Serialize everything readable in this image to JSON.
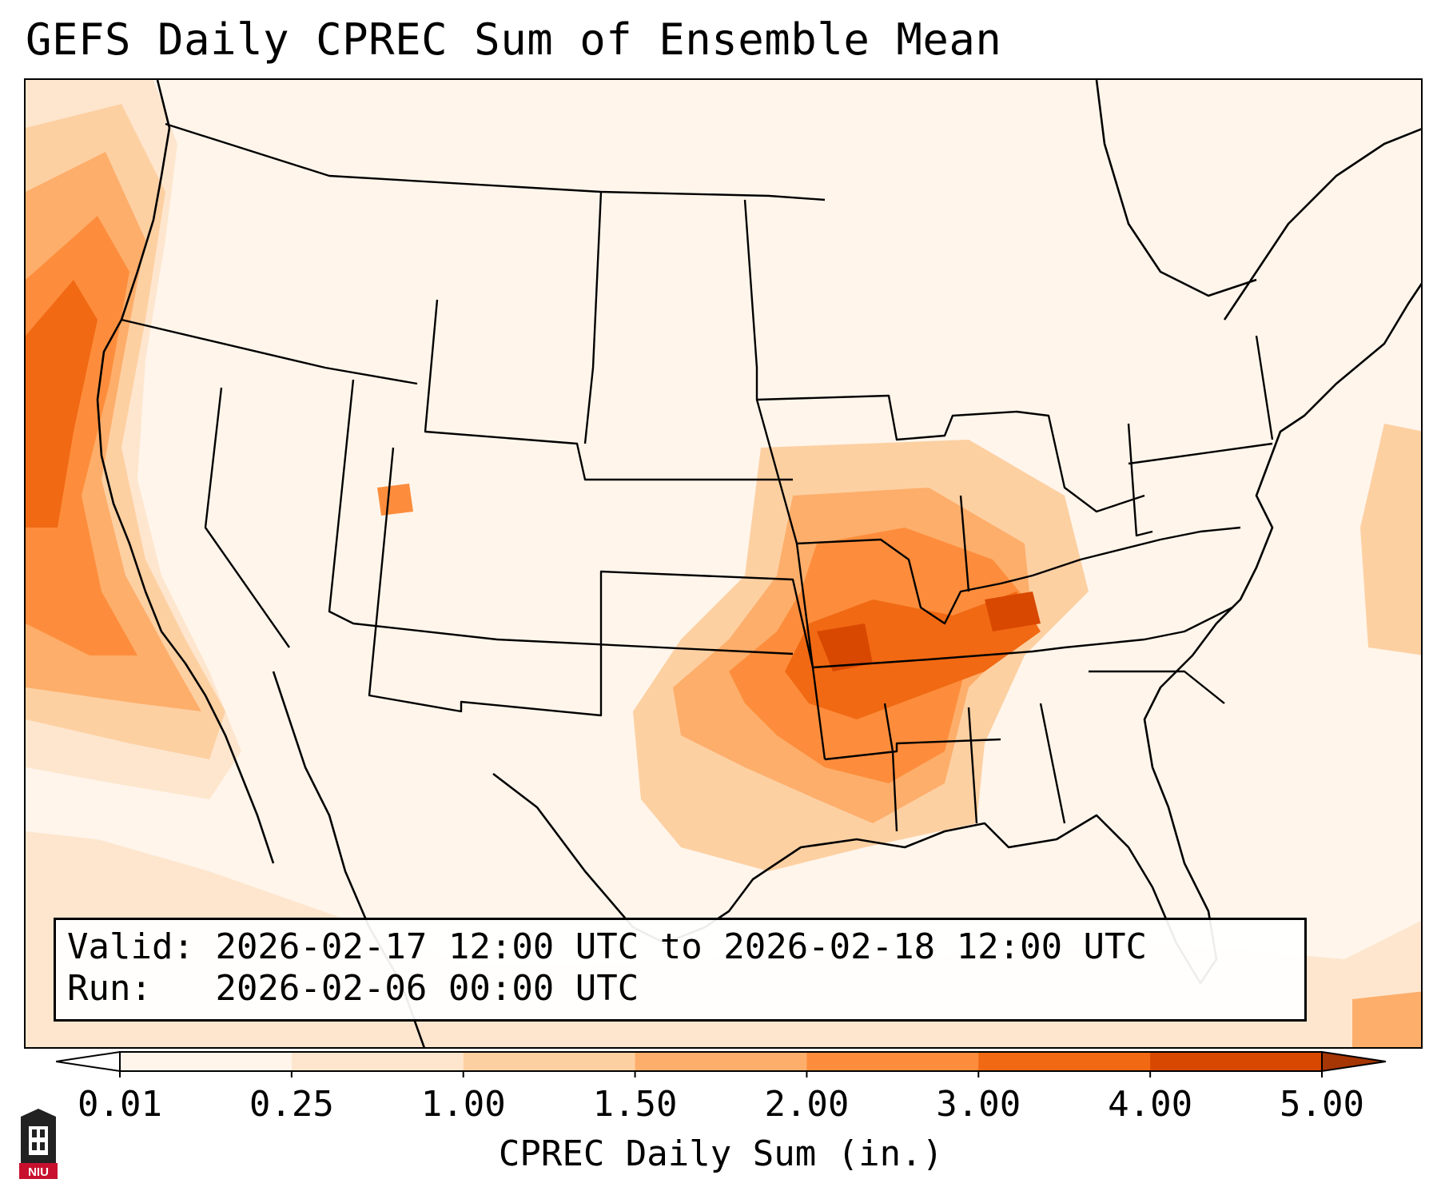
{
  "title": "GEFS Daily CPREC Sum of Ensemble Mean",
  "info": {
    "valid_label": "Valid:",
    "valid_value": "2026-02-17 12:00 UTC to 2026-02-18 12:00 UTC",
    "run_label": "Run:",
    "run_value": "2026-02-06 00:00 UTC"
  },
  "colorbar": {
    "title": "CPREC Daily Sum (in.)",
    "ticks": [
      "0.01",
      "0.25",
      "1.00",
      "1.50",
      "2.00",
      "3.00",
      "4.00",
      "5.00"
    ],
    "colors": [
      "#fff5eb",
      "#fee6ce",
      "#fdd0a2",
      "#fdae6b",
      "#fd8d3c",
      "#f16913",
      "#d94801"
    ],
    "under_color": "#ffffff",
    "over_color": "#a63603"
  },
  "logo": {
    "text": "NIU",
    "color": "#c8102e"
  },
  "map": {
    "region": "Continental United States",
    "features": [
      "coastlines",
      "state-borders",
      "country-borders"
    ],
    "overlay": "precipitation-shading"
  }
}
